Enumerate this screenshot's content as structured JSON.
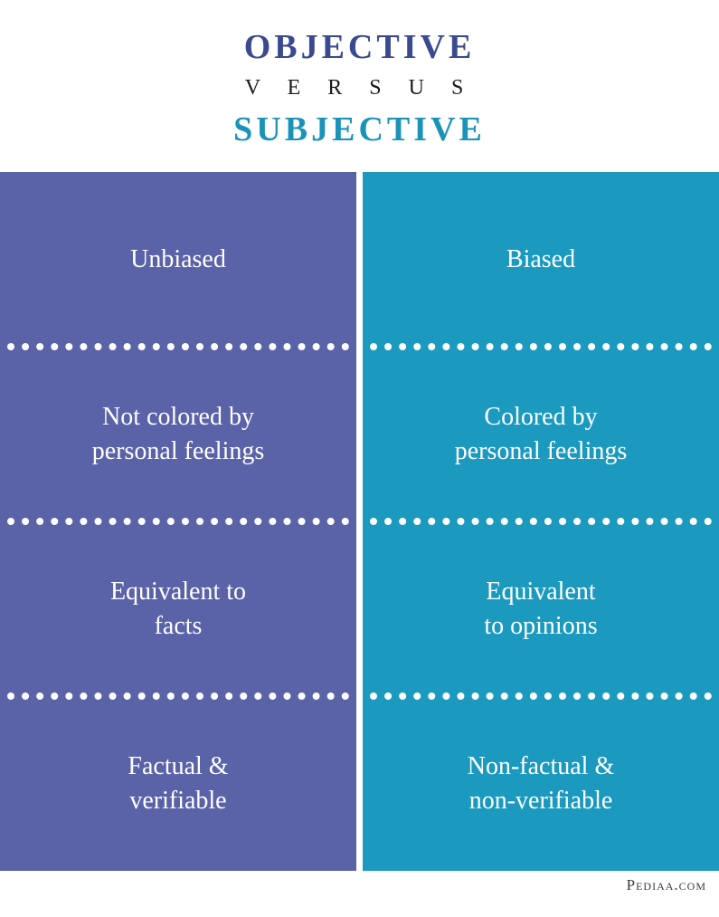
{
  "header": {
    "top": "OBJECTIVE",
    "top_color": "#3b4a8f",
    "mid": "V E R S U S",
    "mid_color": "#1a1a1a",
    "bot": "SUBJECTIVE",
    "bot_color": "#1b93b8"
  },
  "columns": {
    "left": {
      "bg": "#5a62a8",
      "cells": [
        "Unbiased",
        "Not colored by\npersonal feelings",
        "Equivalent to\nfacts",
        "Factual &\nverifiable"
      ]
    },
    "right": {
      "bg": "#1b99bf",
      "cells": [
        "Biased",
        "Colored by\npersonal feelings",
        "Equivalent\nto opinions",
        "Non-factual &\nnon-verifiable"
      ]
    }
  },
  "footer": {
    "text": "Pediaa.com",
    "color": "#3a3a3a"
  },
  "style": {
    "cell_text_color": "#ffffff",
    "divider_color": "#ffffff",
    "cell_fontsize": 28,
    "title_fontsize": 38
  }
}
